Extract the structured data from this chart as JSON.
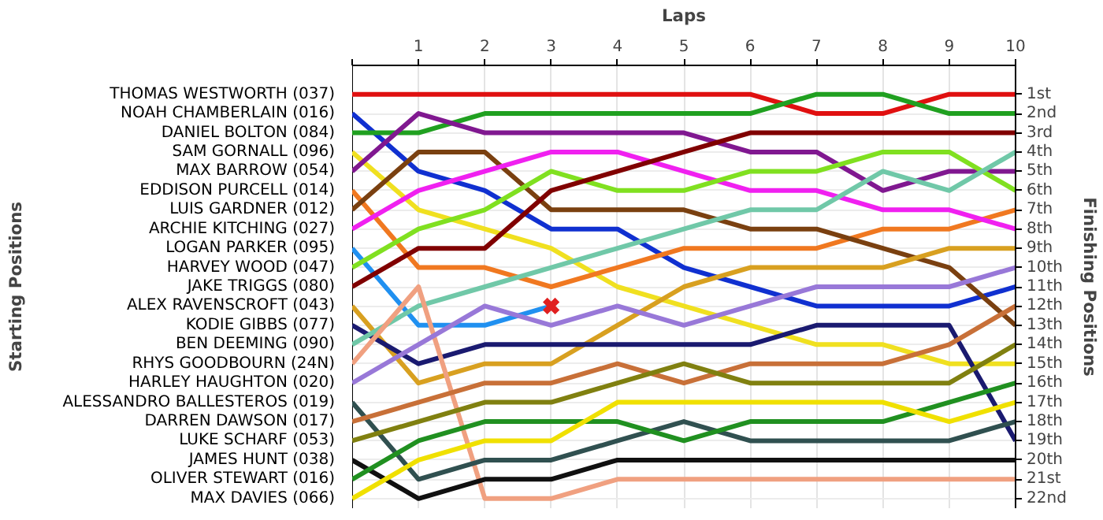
{
  "chart_data": {
    "type": "line",
    "xlabel": "Laps",
    "legend_title": "Starting Positions",
    "ylabel": "Finishing Positions",
    "x": [
      0,
      1,
      2,
      3,
      4,
      5,
      6,
      7,
      8,
      9,
      10
    ],
    "xlim": [
      0,
      10
    ],
    "xticks": [
      {
        "value": 0,
        "label": null
      },
      1,
      2,
      3,
      4,
      5,
      6,
      7,
      8,
      9,
      10
    ],
    "ylim": [
      22.5,
      -0.5
    ],
    "yticks": [
      {
        "value": 1,
        "label": "1st"
      },
      {
        "value": 2,
        "label": "2nd"
      },
      {
        "value": 3,
        "label": "3rd"
      },
      {
        "value": 4,
        "label": "4th"
      },
      {
        "value": 5,
        "label": "5th"
      },
      {
        "value": 6,
        "label": "6th"
      },
      {
        "value": 7,
        "label": "7th"
      },
      {
        "value": 8,
        "label": "8th"
      },
      {
        "value": 9,
        "label": "9th"
      },
      {
        "value": 10,
        "label": "10th"
      },
      {
        "value": 11,
        "label": "11th"
      },
      {
        "value": 12,
        "label": "12th"
      },
      {
        "value": 13,
        "label": "13th"
      },
      {
        "value": 14,
        "label": "14th"
      },
      {
        "value": 15,
        "label": "15th"
      },
      {
        "value": 16,
        "label": "16th"
      },
      {
        "value": 17,
        "label": "17th"
      },
      {
        "value": 18,
        "label": "18th"
      },
      {
        "value": 19,
        "label": "19th"
      },
      {
        "value": 20,
        "label": "20th"
      },
      {
        "value": 21,
        "label": "21st"
      },
      {
        "value": 22,
        "label": "22nd"
      }
    ],
    "grid": true,
    "series": [
      {
        "name": "THOMAS WESTWORTH (037)",
        "color": "#e01010",
        "values": [
          1,
          1,
          1,
          1,
          1,
          1,
          1,
          2,
          2,
          1,
          1
        ]
      },
      {
        "name": "NOAH CHAMBERLAIN (016)",
        "color": "#1030d0",
        "values": [
          2,
          5,
          6,
          8,
          8,
          10,
          11,
          12,
          12,
          12,
          11
        ]
      },
      {
        "name": "DANIEL BOLTON (084)",
        "color": "#20a020",
        "values": [
          3,
          3,
          2,
          2,
          2,
          2,
          2,
          1,
          1,
          2,
          2
        ]
      },
      {
        "name": "SAM GORNALL (096)",
        "color": "#f0e020",
        "values": [
          4,
          7,
          8,
          9,
          11,
          12,
          13,
          14,
          14,
          15,
          15
        ]
      },
      {
        "name": "MAX BARROW (054)",
        "color": "#801890",
        "values": [
          5,
          2,
          3,
          3,
          3,
          3,
          4,
          4,
          6,
          5,
          5
        ]
      },
      {
        "name": "EDDISON PURCELL (014)",
        "color": "#f07820",
        "values": [
          6,
          10,
          10,
          11,
          10,
          9,
          9,
          9,
          8,
          8,
          7
        ]
      },
      {
        "name": "LUIS GARDNER (012)",
        "color": "#7a4010",
        "values": [
          7,
          4,
          4,
          7,
          7,
          7,
          8,
          8,
          9,
          10,
          13
        ]
      },
      {
        "name": "ARCHIE KITCHING (027)",
        "color": "#f020f0",
        "values": [
          8,
          6,
          5,
          4,
          4,
          5,
          6,
          6,
          7,
          7,
          8
        ]
      },
      {
        "name": "LOGAN PARKER (095)",
        "color": "#2090f0",
        "values": [
          9,
          13,
          13,
          12,
          null,
          null,
          null,
          null,
          null,
          null,
          null
        ]
      },
      {
        "name": "HARVEY WOOD (047)",
        "color": "#80e020",
        "values": [
          10,
          8,
          7,
          5,
          6,
          6,
          5,
          5,
          4,
          4,
          6
        ]
      },
      {
        "name": "JAKE TRIGGS (080)",
        "color": "#800000",
        "values": [
          11,
          9,
          9,
          6,
          5,
          4,
          3,
          3,
          3,
          3,
          3
        ]
      },
      {
        "name": "ALEX RAVENSCROFT (043)",
        "color": "#d8a020",
        "values": [
          12,
          16,
          15,
          15,
          13,
          11,
          10,
          10,
          10,
          9,
          9
        ]
      },
      {
        "name": "KODIE GIBBS (077)",
        "color": "#1a1a70",
        "values": [
          13,
          15,
          14,
          14,
          14,
          14,
          14,
          13,
          13,
          13,
          19
        ]
      },
      {
        "name": "BEN DEEMING (090)",
        "color": "#70c8a8",
        "values": [
          14,
          12,
          11,
          10,
          9,
          8,
          7,
          7,
          5,
          6,
          4
        ]
      },
      {
        "name": "RHYS GOODBOURN (24N)",
        "color": "#f0a080",
        "values": [
          15,
          11,
          22,
          22,
          21,
          21,
          21,
          21,
          21,
          21,
          21
        ]
      },
      {
        "name": "HARLEY HAUGHTON (020)",
        "color": "#9878d8",
        "values": [
          16,
          14,
          12,
          13,
          12,
          13,
          12,
          11,
          11,
          11,
          10
        ]
      },
      {
        "name": "ALESSANDRO BALLESTEROS (019)",
        "color": "#305050",
        "values": [
          17,
          21,
          20,
          20,
          19,
          18,
          19,
          19,
          19,
          19,
          18
        ]
      },
      {
        "name": "DARREN DAWSON (017)",
        "color": "#c87038",
        "values": [
          18,
          17,
          16,
          16,
          15,
          16,
          15,
          15,
          15,
          14,
          12
        ]
      },
      {
        "name": "LUKE SCHARF (053)",
        "color": "#808010",
        "values": [
          19,
          18,
          17,
          17,
          16,
          15,
          16,
          16,
          16,
          16,
          14
        ]
      },
      {
        "name": "JAMES HUNT (038)",
        "color": "#101010",
        "values": [
          20,
          22,
          21,
          21,
          20,
          20,
          20,
          20,
          20,
          20,
          20
        ]
      },
      {
        "name": "OLIVER STEWART (016)",
        "color": "#209020",
        "values": [
          21,
          19,
          18,
          18,
          18,
          19,
          18,
          18,
          18,
          17,
          16
        ]
      },
      {
        "name": "MAX DAVIES (066)",
        "color": "#f0e000",
        "values": [
          22,
          20,
          19,
          19,
          17,
          17,
          17,
          17,
          17,
          18,
          17
        ]
      },
      {
        "type": "scatter",
        "marker": "cross",
        "color": "#e02020",
        "x": [
          3
        ],
        "values": [
          12
        ]
      }
    ]
  }
}
